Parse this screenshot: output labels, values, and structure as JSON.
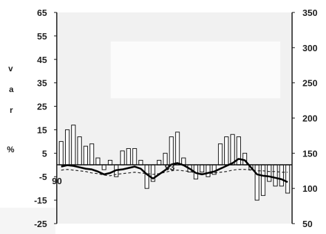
{
  "chart_data": {
    "type": "bar",
    "title": "",
    "xlabel": "",
    "ylabel": "v a r %",
    "ylabel_letters": [
      "v",
      "a",
      "r",
      "%"
    ],
    "ylim": [
      -25,
      65
    ],
    "y2lim": [
      50,
      350
    ],
    "left_ticks": [
      65,
      55,
      45,
      35,
      25,
      15,
      5,
      -5,
      -15,
      -25
    ],
    "right_ticks": [
      350,
      300,
      250,
      200,
      150,
      100,
      50
    ],
    "annotations": [
      "90",
      "93"
    ],
    "grid": false,
    "series": [
      {
        "type": "bar",
        "axis": "left",
        "values": [
          10,
          15,
          17,
          12,
          8,
          9,
          3,
          -2,
          2,
          -5,
          6,
          7,
          7,
          2,
          -10,
          -7,
          2,
          5,
          12,
          14,
          3,
          -3,
          -6,
          -3,
          -5,
          -4,
          9,
          12,
          13,
          12,
          5,
          -2,
          -15,
          -13,
          -7,
          -9,
          -9,
          -12
        ]
      },
      {
        "type": "line",
        "style": "solid",
        "axis": "right",
        "values": [
          131,
          133,
          132,
          130,
          128,
          127,
          124,
          120,
          122,
          126,
          127,
          129,
          131,
          128,
          120,
          114,
          120,
          126,
          134,
          136,
          133,
          128,
          122,
          120,
          122,
          124,
          128,
          132,
          136,
          142,
          140,
          130,
          120,
          118,
          117,
          115,
          113,
          109
        ]
      },
      {
        "type": "line",
        "style": "dashed",
        "axis": "right",
        "values": [
          126,
          127,
          126,
          125,
          124,
          122,
          121,
          119,
          118,
          120,
          121,
          122,
          123,
          122,
          121,
          120,
          121,
          123,
          125,
          126,
          125,
          124,
          122,
          121,
          121,
          122,
          123,
          124,
          126,
          127,
          127,
          126,
          125,
          125,
          124,
          124,
          123,
          123
        ]
      }
    ]
  }
}
